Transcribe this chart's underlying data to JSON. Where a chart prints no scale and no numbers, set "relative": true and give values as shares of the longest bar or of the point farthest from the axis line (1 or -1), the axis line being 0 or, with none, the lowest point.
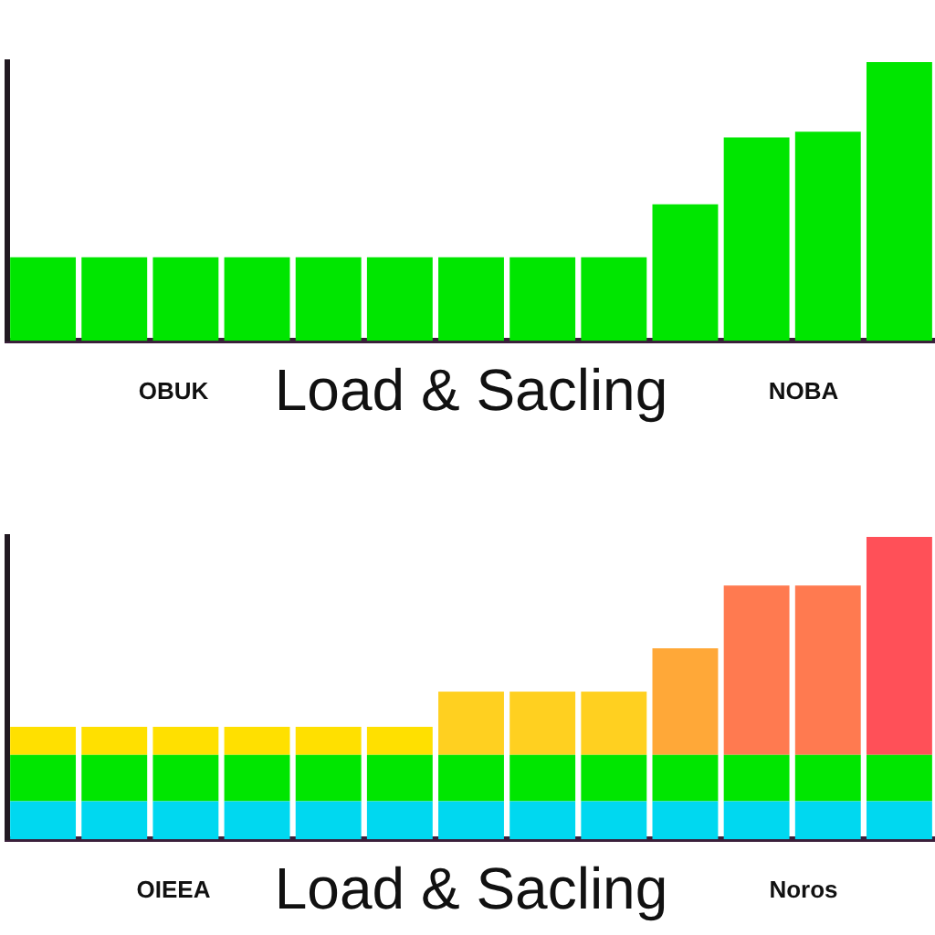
{
  "chart_data": [
    {
      "type": "bar",
      "relative": true,
      "categories": [
        null,
        null,
        null,
        null,
        null,
        null,
        null,
        null,
        null,
        null,
        null,
        null,
        null
      ],
      "values": [
        0.3,
        0.3,
        0.3,
        0.3,
        0.3,
        0.3,
        0.3,
        0.3,
        0.3,
        0.49,
        0.73,
        0.75,
        1
      ],
      "color": "#00e600",
      "xlabel": "Load & Sacling",
      "annotations": [
        "OBUK",
        "NOBA"
      ],
      "grid": false,
      "legend": false
    },
    {
      "type": "bar",
      "relative": true,
      "stacked": true,
      "categories": [
        null,
        null,
        null,
        null,
        null,
        null,
        null,
        null,
        null,
        null,
        null,
        null,
        null
      ],
      "series": [
        {
          "color": "#00d8f0",
          "values": [
            0.126,
            0.126,
            0.126,
            0.126,
            0.126,
            0.126,
            0.126,
            0.126,
            0.126,
            0.126,
            0.126,
            0.126,
            0.126
          ]
        },
        {
          "color": "#00e600",
          "values": [
            0.153,
            0.153,
            0.153,
            0.153,
            0.153,
            0.153,
            0.153,
            0.153,
            0.153,
            0.153,
            0.153,
            0.153,
            0.153
          ]
        },
        {
          "colors": [
            "#ffe000",
            "#ffe000",
            "#ffe000",
            "#ffe000",
            "#ffe000",
            "#ffe000",
            "#ffd020",
            "#ffd020",
            "#ffd020",
            "#ffa838",
            "#ff7a50",
            "#ff7a50",
            "#ff5058"
          ],
          "values": [
            0.093,
            0.093,
            0.093,
            0.093,
            0.093,
            0.093,
            0.209,
            0.209,
            0.209,
            0.353,
            0.56,
            0.56,
            0.721
          ]
        }
      ],
      "xlabel": "Load & Sacling",
      "annotations": [
        "OIEEA",
        "Noros"
      ],
      "grid": false,
      "legend": false
    }
  ]
}
